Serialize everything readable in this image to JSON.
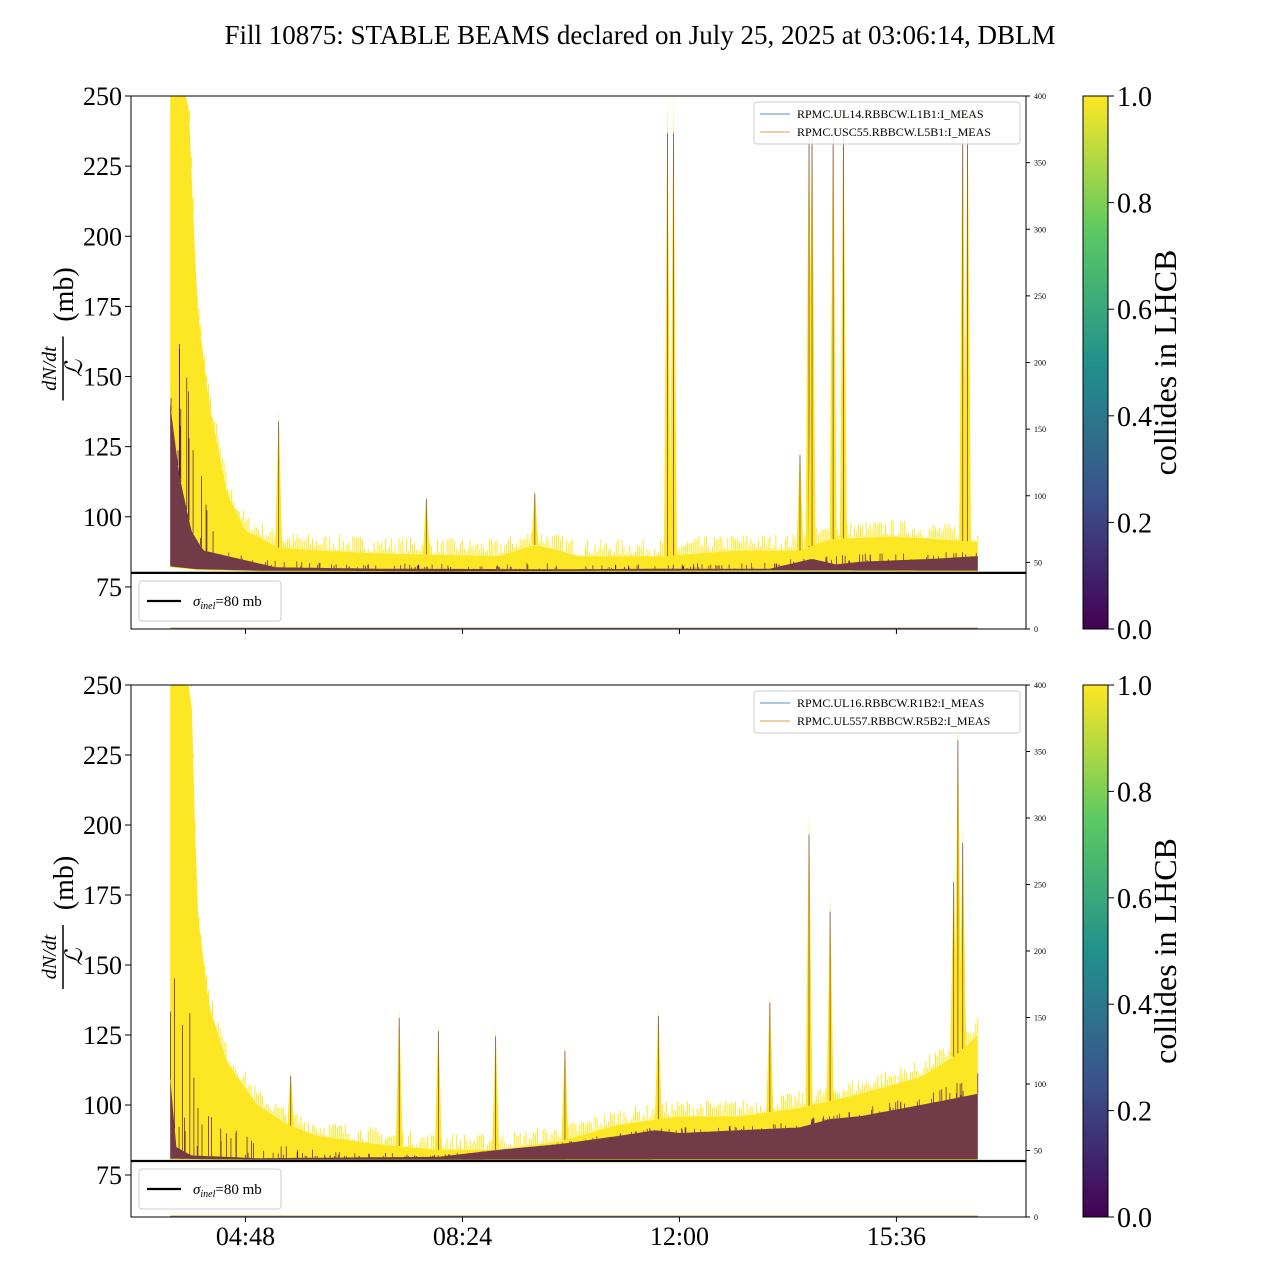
{
  "title": "Fill 10875: STABLE BEAMS declared on July 25, 2025 at 03:06:14, DBLM",
  "colors": {
    "fill_high": "#fde725",
    "fill_low": "#440154",
    "baseline": "#000000",
    "series_blue": "#5b8fc9",
    "series_orange": "#e0a040",
    "colorbar_stops": [
      "#440154",
      "#3b528b",
      "#21918c",
      "#5ec962",
      "#fde725"
    ]
  },
  "chart_data": [
    {
      "type": "area",
      "panel": "top",
      "ylabel_expr": {
        "num": "dN/dt",
        "den": "ℒ",
        "unit": "(mb)"
      },
      "ylim": [
        60,
        250
      ],
      "yticks": [
        75,
        100,
        125,
        150,
        175,
        200,
        225,
        250
      ],
      "ylim_right": [
        0,
        400
      ],
      "yticks_right": [
        0,
        50,
        100,
        150,
        200,
        250,
        300,
        350,
        400
      ],
      "xticks": [
        {
          "t": 4.8,
          "label": "04:48"
        },
        {
          "t": 8.4,
          "label": "08:24"
        },
        {
          "t": 12.0,
          "label": "12:00"
        },
        {
          "t": 15.6,
          "label": "15:36"
        }
      ],
      "xlim": [
        2.9,
        17.75
      ],
      "data_range": [
        3.55,
        16.95
      ],
      "legend": [
        {
          "label": "RPMC.UL14.RBBCW.L1B1:I_MEAS",
          "color": "#5b8fc9"
        },
        {
          "label": "RPMC.USC55.RBBCW.L5B1:I_MEAS",
          "color": "#e0a040"
        }
      ],
      "baseline_legend": {
        "sym": "σ",
        "sub": "inel",
        "rest": "=80 mb"
      },
      "baseline_value": 80,
      "colorbar_label": "collides in LHCB",
      "colorbar_ticks": [
        "0.0",
        "0.2",
        "0.4",
        "0.6",
        "0.8",
        "1.0"
      ],
      "envelope_upper": [
        [
          3.55,
          250
        ],
        [
          3.85,
          250
        ],
        [
          4.0,
          175
        ],
        [
          4.2,
          140
        ],
        [
          4.5,
          108
        ],
        [
          4.8,
          95
        ],
        [
          5.0,
          93
        ],
        [
          5.35,
          89
        ],
        [
          6,
          88
        ],
        [
          7,
          87
        ],
        [
          8,
          86.5
        ],
        [
          9,
          86
        ],
        [
          9.6,
          90
        ],
        [
          10,
          88
        ],
        [
          10.3,
          86
        ],
        [
          11,
          86
        ],
        [
          11.8,
          86
        ],
        [
          12.3,
          87
        ],
        [
          13,
          88
        ],
        [
          14,
          88
        ],
        [
          14.5,
          92
        ],
        [
          15.5,
          93
        ],
        [
          16.3,
          92
        ],
        [
          16.95,
          91
        ]
      ],
      "envelope_lower": [
        [
          3.55,
          82
        ],
        [
          4.0,
          81
        ],
        [
          5,
          80.5
        ],
        [
          8,
          80.3
        ],
        [
          12,
          80.5
        ],
        [
          14,
          80.6
        ],
        [
          16.95,
          80.5
        ]
      ],
      "dark_band": [
        [
          3.55,
          140
        ],
        [
          3.7,
          115
        ],
        [
          3.9,
          95
        ],
        [
          4.1,
          88
        ],
        [
          4.5,
          86
        ],
        [
          4.7,
          85
        ],
        [
          5.3,
          82
        ],
        [
          7,
          81.5
        ],
        [
          10,
          81.3
        ],
        [
          12,
          81.5
        ],
        [
          13.5,
          81.5
        ],
        [
          14.2,
          85
        ],
        [
          14.6,
          83
        ],
        [
          15,
          84
        ],
        [
          16.2,
          85
        ],
        [
          16.95,
          86
        ]
      ],
      "spikes": [
        {
          "t": 5.35,
          "v": 138
        },
        {
          "t": 9.6,
          "v": 110
        },
        {
          "t": 11.8,
          "v": 250
        },
        {
          "t": 11.9,
          "v": 250
        },
        {
          "t": 14.15,
          "v": 250
        },
        {
          "t": 14.2,
          "v": 250
        },
        {
          "t": 14.55,
          "v": 250
        },
        {
          "t": 14.72,
          "v": 250
        },
        {
          "t": 16.7,
          "v": 250
        },
        {
          "t": 16.78,
          "v": 250
        },
        {
          "t": 7.8,
          "v": 108
        },
        {
          "t": 14.0,
          "v": 125
        }
      ]
    },
    {
      "type": "area",
      "panel": "bottom",
      "ylabel_expr": {
        "num": "dN/dt",
        "den": "ℒ",
        "unit": "(mb)"
      },
      "ylim": [
        60,
        250
      ],
      "yticks": [
        75,
        100,
        125,
        150,
        175,
        200,
        225,
        250
      ],
      "ylim_right": [
        0,
        400
      ],
      "yticks_right": [
        0,
        50,
        100,
        150,
        200,
        250,
        300,
        350,
        400
      ],
      "xticks": [
        {
          "t": 4.8,
          "label": "04:48"
        },
        {
          "t": 8.4,
          "label": "08:24"
        },
        {
          "t": 12.0,
          "label": "12:00"
        },
        {
          "t": 15.6,
          "label": "15:36"
        }
      ],
      "xlim": [
        2.9,
        17.75
      ],
      "data_range": [
        3.55,
        16.95
      ],
      "legend": [
        {
          "label": "RPMC.UL16.RBBCW.R1B2:I_MEAS",
          "color": "#5b8fc9"
        },
        {
          "label": "RPMC.UL557.RBBCW.R5B2:I_MEAS",
          "color": "#e0a040"
        }
      ],
      "baseline_legend": {
        "sym": "σ",
        "sub": "inel",
        "rest": "=80 mb"
      },
      "baseline_value": 80,
      "colorbar_label": "collides in LHCB",
      "colorbar_ticks": [
        "0.0",
        "0.2",
        "0.4",
        "0.6",
        "0.8",
        "1.0"
      ],
      "envelope_upper": [
        [
          3.55,
          250
        ],
        [
          3.9,
          250
        ],
        [
          4.0,
          170
        ],
        [
          4.2,
          135
        ],
        [
          4.5,
          115
        ],
        [
          5,
          100
        ],
        [
          5.5,
          93
        ],
        [
          6,
          89
        ],
        [
          7,
          86
        ],
        [
          8,
          84
        ],
        [
          9,
          84
        ],
        [
          10,
          87
        ],
        [
          11,
          93
        ],
        [
          12,
          96
        ],
        [
          13,
          96
        ],
        [
          14,
          99
        ],
        [
          15,
          104
        ],
        [
          16,
          110
        ],
        [
          16.6,
          118
        ],
        [
          16.95,
          125
        ]
      ],
      "envelope_lower": [
        [
          3.55,
          80.5
        ],
        [
          5,
          80.2
        ],
        [
          8,
          80.2
        ],
        [
          12,
          80.3
        ],
        [
          16.95,
          80.3
        ]
      ],
      "dark_band": [
        [
          3.55,
          110
        ],
        [
          3.65,
          85
        ],
        [
          3.9,
          82
        ],
        [
          5,
          81
        ],
        [
          8,
          81.5
        ],
        [
          9,
          84
        ],
        [
          10,
          86
        ],
        [
          11,
          89
        ],
        [
          11.6,
          91
        ],
        [
          12,
          90
        ],
        [
          13,
          91
        ],
        [
          14,
          92
        ],
        [
          14.5,
          95
        ],
        [
          15,
          96
        ],
        [
          16,
          100
        ],
        [
          16.95,
          104
        ]
      ],
      "spikes": [
        {
          "t": 5.55,
          "v": 112
        },
        {
          "t": 7.35,
          "v": 135
        },
        {
          "t": 8.0,
          "v": 130
        },
        {
          "t": 8.95,
          "v": 128
        },
        {
          "t": 10.1,
          "v": 122
        },
        {
          "t": 11.65,
          "v": 135
        },
        {
          "t": 13.5,
          "v": 140
        },
        {
          "t": 14.15,
          "v": 205
        },
        {
          "t": 14.5,
          "v": 175
        },
        {
          "t": 16.55,
          "v": 185
        },
        {
          "t": 16.62,
          "v": 240
        },
        {
          "t": 16.7,
          "v": 200
        }
      ]
    }
  ]
}
